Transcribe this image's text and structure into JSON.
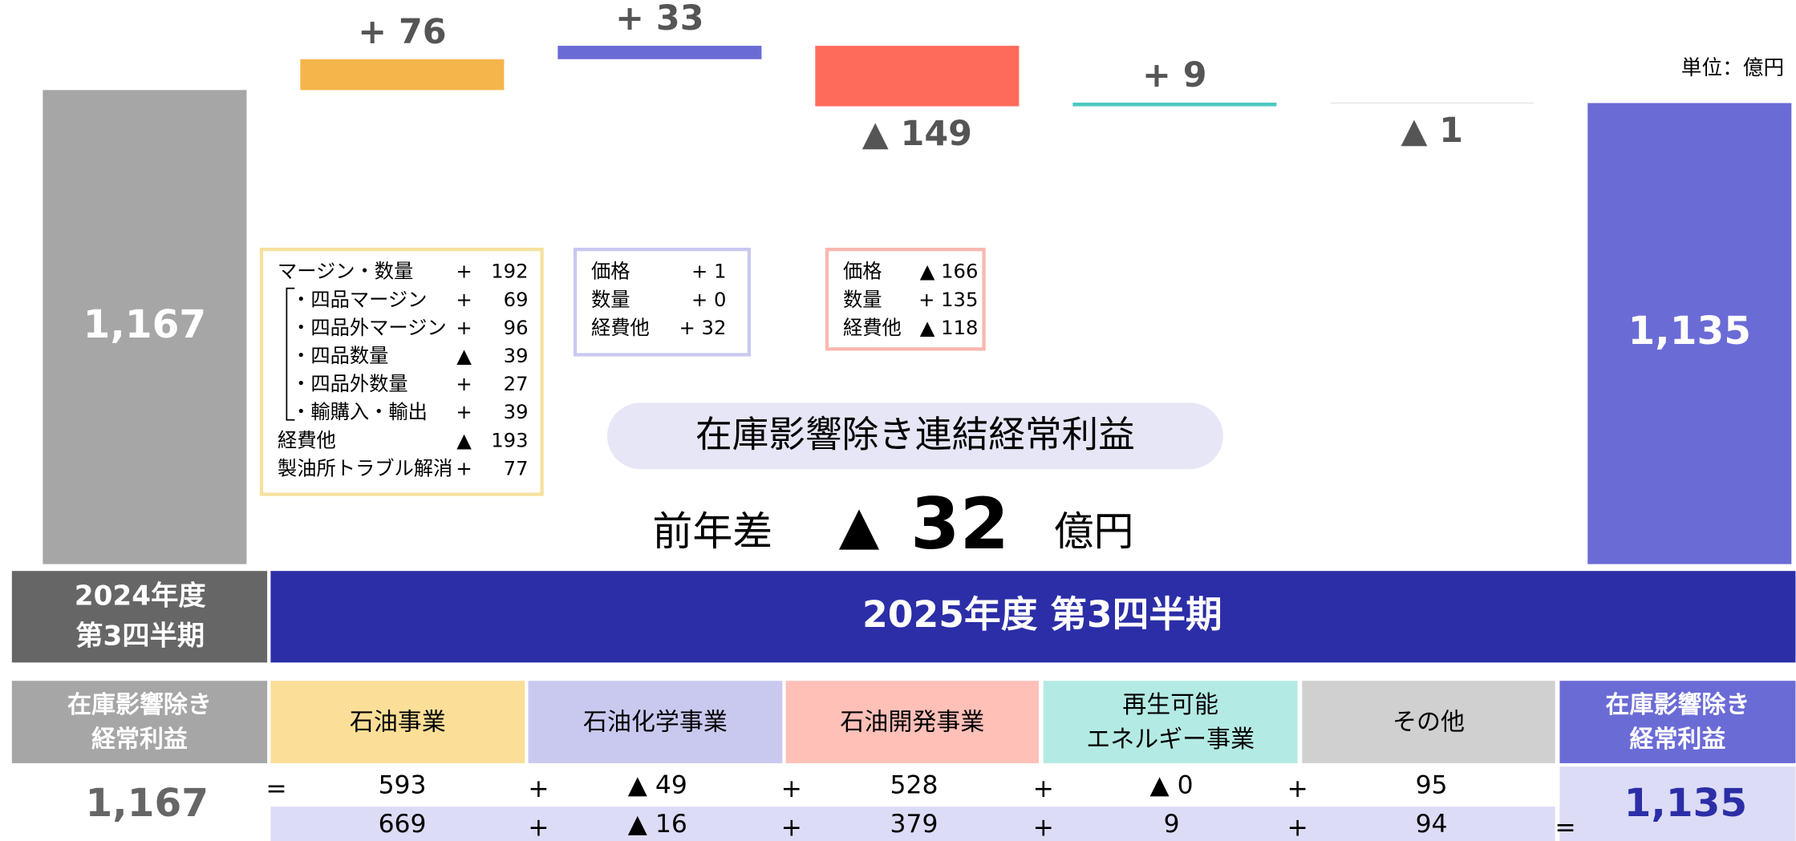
{
  "chart_data": {
    "type": "waterfall",
    "values": [
      1167,
      76,
      33,
      -149,
      9,
      -1,
      1135
    ],
    "value_labels": [
      "1,167",
      "+ 76",
      "+ 33",
      "▲ 149",
      "+ 9",
      "▲ 1",
      "1,135"
    ],
    "is_total": [
      true,
      false,
      false,
      false,
      false,
      false,
      true
    ],
    "colors": [
      "#a6a6a6",
      "#f4b54b",
      "#6b6bd6",
      "#ff6b5b",
      "#4dc9c0",
      "#bdbdbd",
      "#6b6bd6"
    ],
    "unit": "単位：億円"
  },
  "breakdowns": [
    {
      "rows": [
        [
          "マージン・数量",
          "+",
          "192"
        ],
        [
          "・四品マージン",
          "+",
          "69"
        ],
        [
          "・四品外マージン",
          "+",
          "96"
        ],
        [
          "・四品数量",
          "▲",
          "39"
        ],
        [
          "・四品外数量",
          "+",
          "27"
        ],
        [
          "・輸購入・輸出",
          "+",
          "39"
        ],
        [
          "経費他",
          "▲",
          "193"
        ],
        [
          "製油所トラブル解消",
          "+",
          "77"
        ]
      ]
    },
    {
      "rows": [
        [
          "価格",
          "+ 1"
        ],
        [
          "数量",
          "+ 0"
        ],
        [
          "経費他",
          "+ 32"
        ]
      ]
    },
    {
      "rows": [
        [
          "価格",
          "▲ 166"
        ],
        [
          "数量",
          "+ 135"
        ],
        [
          "経費他",
          "▲ 118"
        ]
      ]
    }
  ],
  "headline": {
    "title": "在庫影響除き連結経常利益",
    "prefix": "前年差",
    "sign": "▲",
    "value": "32",
    "unit": "億円"
  },
  "band": {
    "left": [
      "2024年度",
      "第3四半期"
    ],
    "right": "2025年度 第3四半期"
  },
  "table": {
    "header": [
      [
        "在庫影響除き",
        "経常利益"
      ],
      [
        "石油事業"
      ],
      [
        "石油化学事業"
      ],
      [
        "石油開発事業"
      ],
      [
        "再生可能",
        "エネルギー事業"
      ],
      [
        "その他"
      ],
      [
        "在庫影響除き",
        "経常利益"
      ]
    ],
    "start": "1,167",
    "end": "1,135",
    "row1": {
      "cells": [
        "593",
        "▲ 49",
        "528",
        "▲ 0",
        "95"
      ],
      "operators": [
        "=",
        "+",
        "+",
        "+",
        "+"
      ]
    },
    "row2": {
      "cells": [
        "669",
        "▲ 16",
        "379",
        "9",
        "94"
      ],
      "operators": [
        "+",
        "+",
        "+",
        "+",
        "="
      ]
    }
  }
}
